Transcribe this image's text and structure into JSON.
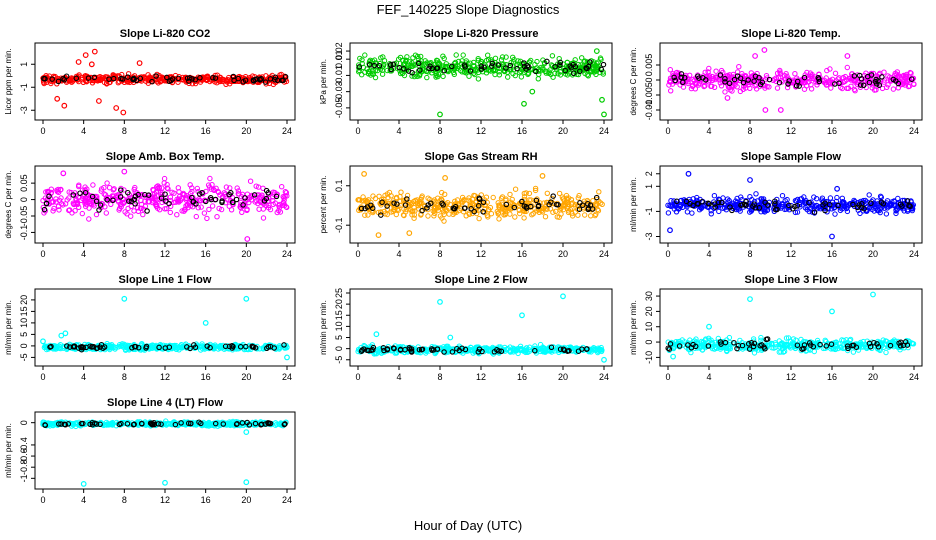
{
  "title": "FEF_140225  Slope Diagnostics",
  "xlabel": "Hour of Day (UTC)",
  "colors": {
    "red": "#ff0000",
    "green": "#00cc00",
    "magenta": "#ff00ff",
    "orange": "#ffa500",
    "blue": "#0000ff",
    "cyan": "#00ffff",
    "black": "#000000"
  },
  "chart_data": [
    {
      "type": "scatter",
      "title": "Slope Li-820 CO2",
      "ylabel": "Licor ppm per min.",
      "xlim": [
        0,
        24
      ],
      "ylim": [
        -3.5,
        2.5
      ],
      "yticks": [
        -3,
        -1,
        1
      ],
      "color": "#ff0000",
      "center": -0.3,
      "spread": 0.35,
      "outliers": [
        [
          4.2,
          1.8
        ],
        [
          5.1,
          2.1
        ],
        [
          3.5,
          1.2
        ],
        [
          2.1,
          -2.6
        ],
        [
          7.9,
          -3.2
        ],
        [
          5.5,
          -2.2
        ],
        [
          7.2,
          -2.8
        ],
        [
          1.4,
          -2.0
        ],
        [
          4.8,
          1.0
        ],
        [
          9.5,
          1.1
        ]
      ]
    },
    {
      "type": "scatter",
      "title": "Slope Li-820 Pressure",
      "ylabel": "kPa per min.",
      "xlim": [
        0,
        24
      ],
      "ylim": [
        -0.06,
        0.025
      ],
      "yticks": [
        -0.05,
        -0.03,
        -0.01,
        0.01,
        0.02
      ],
      "color": "#00cc00",
      "center": 0.0,
      "spread": 0.012,
      "outliers": [
        [
          8.0,
          -0.058
        ],
        [
          16.2,
          -0.045
        ],
        [
          24.0,
          -0.058
        ],
        [
          23.3,
          0.02
        ],
        [
          23.8,
          -0.04
        ],
        [
          17.0,
          -0.03
        ]
      ]
    },
    {
      "type": "scatter",
      "title": "Slope Li-820 Temp.",
      "ylabel": "degrees C per min.",
      "xlim": [
        0,
        24
      ],
      "ylim": [
        -0.012,
        0.011
      ],
      "yticks": [
        -0.01,
        -0.005,
        0.0,
        0.005
      ],
      "color": "#ff00ff",
      "center": 0.0,
      "spread": 0.003,
      "outliers": [
        [
          9.4,
          0.01
        ],
        [
          11.0,
          -0.01
        ],
        [
          9.5,
          -0.01
        ],
        [
          5.8,
          -0.006
        ],
        [
          8.5,
          0.008
        ],
        [
          17.5,
          0.008
        ]
      ]
    },
    {
      "type": "scatter",
      "title": "Slope Amb. Box Temp.",
      "ylabel": "degrees C per min.",
      "xlim": [
        0,
        24
      ],
      "ylim": [
        -0.12,
        0.09
      ],
      "yticks": [
        -0.1,
        -0.05,
        0.0,
        0.05
      ],
      "color": "#ff00ff",
      "center": 0.0,
      "spread": 0.045,
      "outliers": [
        [
          8.0,
          0.085
        ],
        [
          20.1,
          -0.12
        ],
        [
          2.0,
          0.08
        ]
      ]
    },
    {
      "type": "scatter",
      "title": "Slope Gas Stream RH",
      "ylabel": "percent per min.",
      "xlim": [
        0,
        24
      ],
      "ylim": [
        -0.17,
        0.18
      ],
      "yticks": [
        -0.1,
        0.1
      ],
      "color": "#ffa500",
      "center": 0.0,
      "spread": 0.06,
      "outliers": [
        [
          0.6,
          0.16
        ],
        [
          2.0,
          -0.15
        ],
        [
          8.5,
          0.14
        ],
        [
          18.0,
          0.15
        ],
        [
          5.0,
          -0.14
        ]
      ]
    },
    {
      "type": "scatter",
      "title": "Slope Sample Flow",
      "ylabel": "ml/min per min.",
      "xlim": [
        0,
        24
      ],
      "ylim": [
        -3.2,
        2.3
      ],
      "yticks": [
        -3,
        -1,
        1,
        2
      ],
      "color": "#0000ff",
      "center": -0.5,
      "spread": 0.6,
      "outliers": [
        [
          2.0,
          2.0
        ],
        [
          8.0,
          1.5
        ],
        [
          16.0,
          -3.0
        ],
        [
          0.2,
          -2.5
        ],
        [
          16.5,
          0.8
        ]
      ]
    },
    {
      "type": "scatter",
      "title": "Slope Line 1 Flow",
      "ylabel": "ml/min per min.",
      "xlim": [
        0,
        24
      ],
      "ylim": [
        -7,
        23
      ],
      "yticks": [
        -5,
        0,
        5,
        10,
        15,
        20
      ],
      "color": "#00ffff",
      "center": -0.5,
      "spread": 1.2,
      "outliers": [
        [
          8.0,
          20.5
        ],
        [
          20.0,
          20.5
        ],
        [
          16.0,
          10.0
        ],
        [
          1.8,
          4.5
        ],
        [
          2.2,
          5.5
        ],
        [
          0.0,
          2.0
        ],
        [
          24.0,
          -5.0
        ]
      ]
    },
    {
      "type": "scatter",
      "title": "Slope Line 2 Flow",
      "ylabel": "ml/min per min.",
      "xlim": [
        0,
        24
      ],
      "ylim": [
        -6,
        25
      ],
      "yticks": [
        -5,
        0,
        5,
        10,
        15,
        20,
        25
      ],
      "color": "#00ffff",
      "center": -0.5,
      "spread": 1.5,
      "outliers": [
        [
          8.0,
          21.0
        ],
        [
          20.0,
          23.5
        ],
        [
          16.0,
          15.0
        ],
        [
          1.8,
          6.5
        ],
        [
          9.0,
          5.0
        ],
        [
          24.0,
          -5.0
        ]
      ]
    },
    {
      "type": "scatter",
      "title": "Slope Line 3 Flow",
      "ylabel": "ml/min per min.",
      "xlim": [
        0,
        24
      ],
      "ylim": [
        -13,
        32
      ],
      "yticks": [
        -10,
        0,
        10,
        20,
        30
      ],
      "color": "#00ffff",
      "center": -2.0,
      "spread": 4.0,
      "outliers": [
        [
          8.0,
          28.0
        ],
        [
          20.0,
          31.0
        ],
        [
          16.0,
          20.0
        ],
        [
          4.0,
          10.0
        ],
        [
          0.5,
          -9.5
        ]
      ]
    },
    {
      "type": "scatter",
      "title": "Slope Line 4 (LT) Flow",
      "ylabel": "ml/min per min.",
      "xlim": [
        0,
        24
      ],
      "ylim": [
        -1.12,
        0.12
      ],
      "yticks": [
        -1.0,
        -0.8,
        -0.6,
        -0.4,
        0.0
      ],
      "color": "#00ffff",
      "center": -0.02,
      "spread": 0.035,
      "outliers": [
        [
          4.0,
          -1.1
        ],
        [
          12.0,
          -1.08
        ],
        [
          20.0,
          -1.07
        ],
        [
          20.0,
          -0.17
        ]
      ]
    }
  ]
}
